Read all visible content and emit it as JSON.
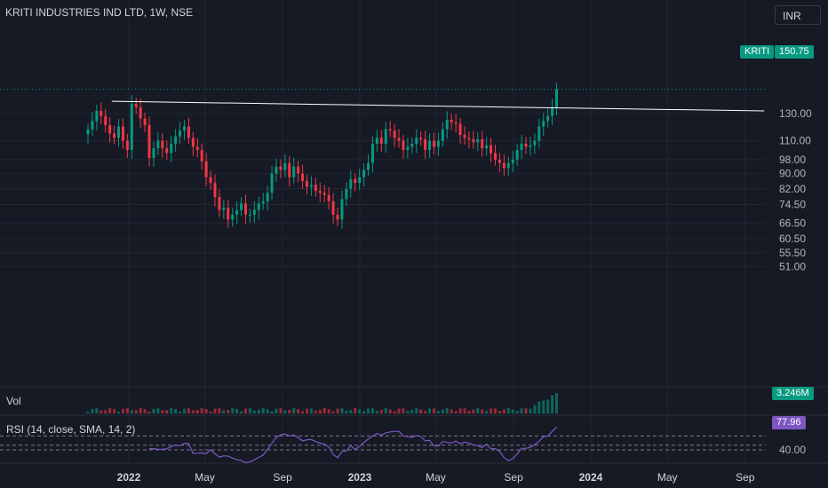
{
  "header": {
    "title": "KRITI INDUSTRIES IND LTD, 1W, NSE",
    "currency": "INR"
  },
  "price_tag": {
    "symbol": "KRITI",
    "value": "150.75",
    "color": "#089981"
  },
  "volume_pane": {
    "label": "Vol",
    "value": "3.246M",
    "tag_color": "#089981"
  },
  "rsi_pane": {
    "label": "RSI (14, close, SMA, 14, 2)",
    "value": "77.96",
    "tag_color": "#7e57c2",
    "level_label": "40.00"
  },
  "colors": {
    "up": "#089981",
    "down": "#f23645",
    "background": "#161a25",
    "grid": "#232632",
    "rsi_line": "#7e57c2",
    "trendline": "#ffffff"
  },
  "chart_data": {
    "type": "candlestick",
    "title": "KRITI INDUSTRIES IND LTD, 1W, NSE",
    "scale": "log",
    "y_ticks": [
      "130.00",
      "110.00",
      "98.00",
      "90.00",
      "82.00",
      "74.50",
      "66.50",
      "60.50",
      "55.50",
      "51.00"
    ],
    "x_ticks": [
      {
        "label": "2022",
        "date": "2022-01-01",
        "year": true
      },
      {
        "label": "May",
        "date": "2022-05-01",
        "year": false
      },
      {
        "label": "Sep",
        "date": "2022-09-01",
        "year": false
      },
      {
        "label": "2023",
        "date": "2023-01-01",
        "year": true
      },
      {
        "label": "May",
        "date": "2023-05-01",
        "year": false
      },
      {
        "label": "Sep",
        "date": "2023-09-01",
        "year": false
      },
      {
        "label": "2024",
        "date": "2024-01-01",
        "year": true
      },
      {
        "label": "May",
        "date": "2024-05-01",
        "year": false
      },
      {
        "label": "Sep",
        "date": "2024-09-01",
        "year": false
      }
    ],
    "closes": [
      118,
      124,
      132,
      128,
      121,
      115,
      112,
      120,
      110,
      104,
      138,
      135,
      126,
      121,
      99,
      105,
      110,
      105,
      102,
      108,
      113,
      117,
      120,
      112,
      106,
      104,
      97,
      88,
      85,
      78,
      72,
      73,
      68,
      70,
      72,
      75,
      70,
      70,
      72,
      75,
      76,
      80,
      90,
      94,
      92,
      96,
      88,
      94,
      90,
      86,
      83,
      84,
      81,
      80,
      79,
      76,
      70,
      68,
      77,
      82,
      87,
      85,
      88,
      92,
      96,
      108,
      112,
      108,
      118,
      117,
      112,
      110,
      104,
      106,
      108,
      112,
      111,
      104,
      110,
      106,
      110,
      118,
      125,
      123,
      122,
      114,
      112,
      111,
      109,
      111,
      105,
      107,
      102,
      98,
      96,
      93,
      96,
      98,
      104,
      108,
      106,
      107,
      110,
      120,
      124,
      128,
      135,
      150.75
    ],
    "volume_label": "Vol",
    "volume_last": "3.246M",
    "rsi_last": 77.96,
    "trendline": {
      "from": {
        "date": "2021-12-05",
        "price": 140
      },
      "to": {
        "date": "2024-10-01",
        "price": 132
      }
    }
  }
}
